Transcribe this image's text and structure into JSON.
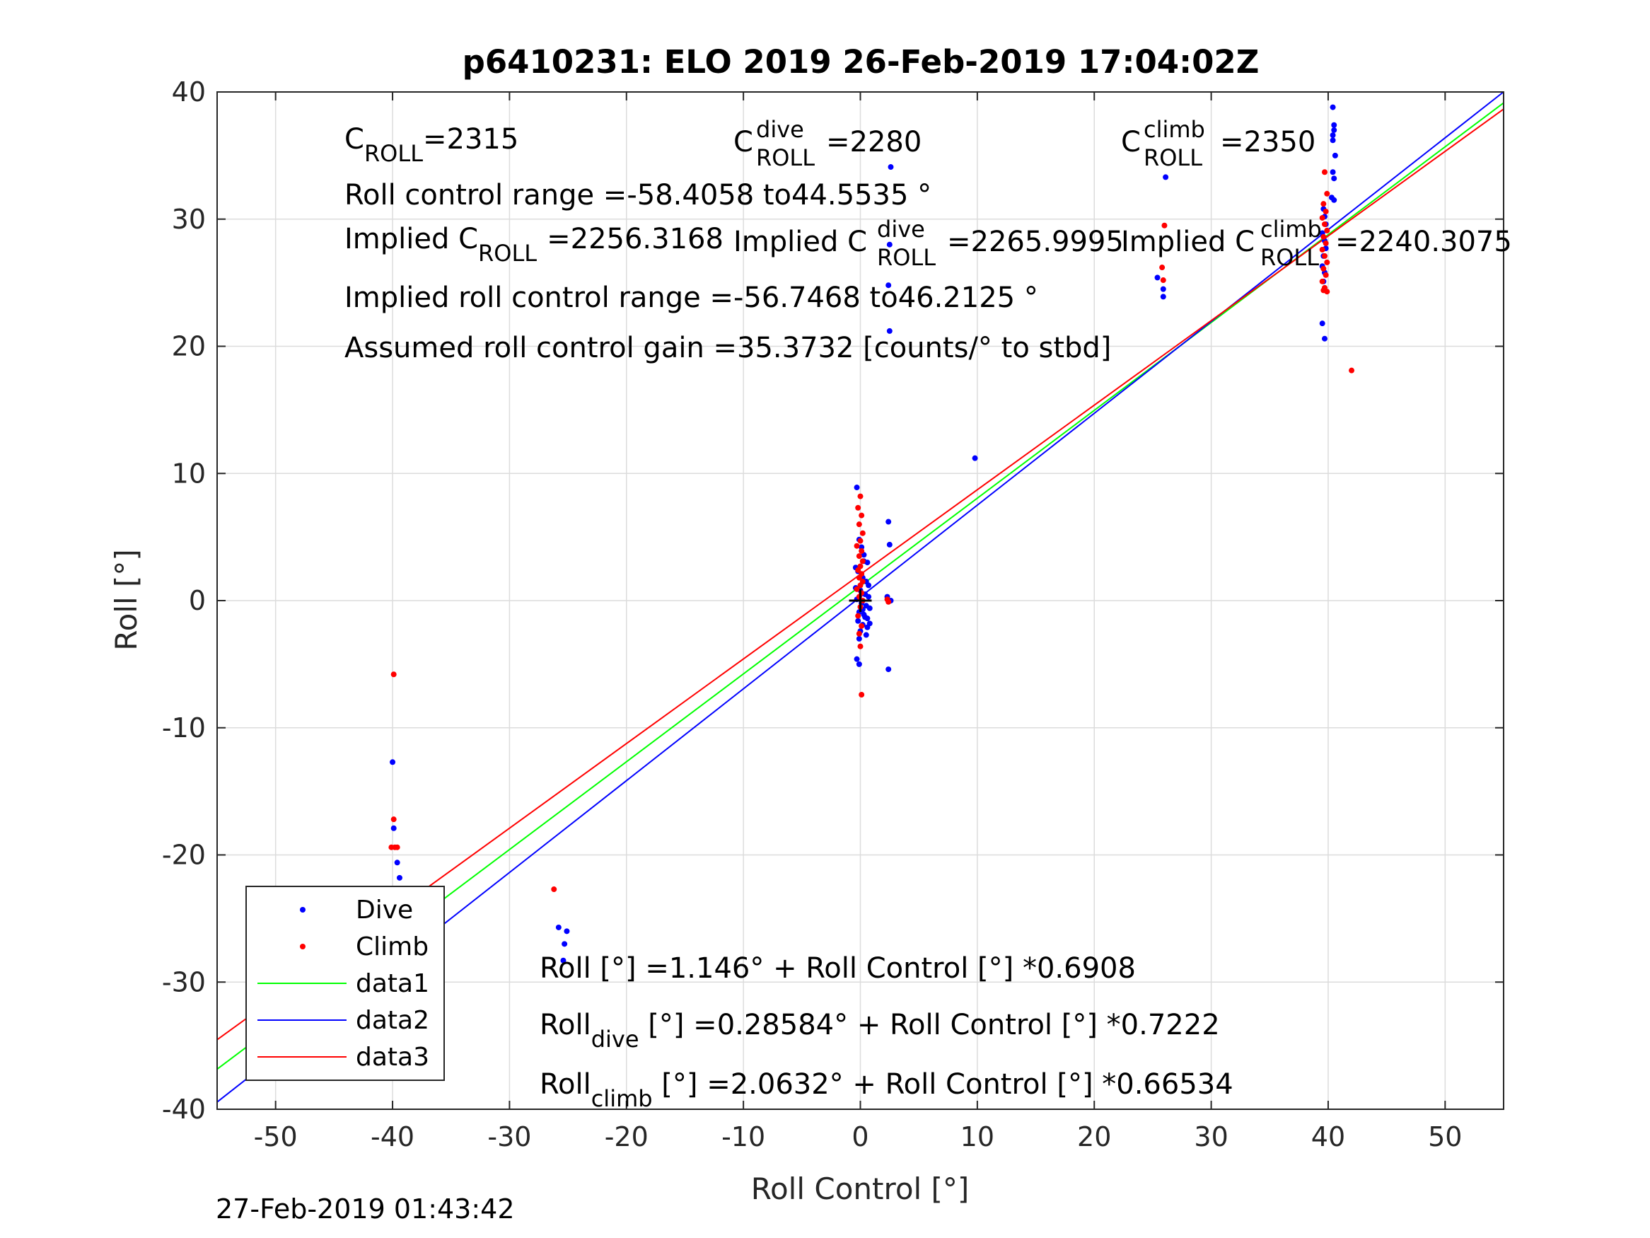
{
  "chart_data": {
    "type": "scatter",
    "title": "p6410231: ELO 2019 26-Feb-2019 17:04:02Z",
    "xlabel": "Roll Control [°]",
    "ylabel": "Roll [°]",
    "xlim": [
      -55,
      55
    ],
    "ylim": [
      -40,
      40
    ],
    "xticks": [
      -50,
      -40,
      -30,
      -20,
      -10,
      0,
      10,
      20,
      30,
      40,
      50
    ],
    "yticks": [
      -40,
      -30,
      -20,
      -10,
      0,
      10,
      20,
      30,
      40
    ],
    "xtick_labels": [
      "-50",
      "-40",
      "-30",
      "-20",
      "-10",
      "0",
      "10",
      "20",
      "30",
      "40",
      "50"
    ],
    "ytick_labels": [
      "-40",
      "-30",
      "-20",
      "-10",
      "0",
      "10",
      "20",
      "30",
      "40"
    ],
    "grid": true,
    "legend_position": "bottom-left",
    "colors": {
      "dive": "#0000ff",
      "climb": "#ff0000",
      "data1": "#00ff00",
      "data2": "#0000ff",
      "data3": "#ff0000",
      "grid": "#dcdcdc"
    },
    "series": [
      {
        "name": "Dive",
        "kind": "scatter",
        "color": "#0000ff",
        "points": [
          [
            -40.0,
            -12.7
          ],
          [
            -39.9,
            -17.9
          ],
          [
            -39.6,
            -20.6
          ],
          [
            -39.4,
            -21.8
          ],
          [
            -39.7,
            -25.5
          ],
          [
            -39.5,
            -25.7
          ],
          [
            -39.6,
            -26.0
          ],
          [
            -39.8,
            -26.4
          ],
          [
            -39.5,
            -27.0
          ],
          [
            -39.7,
            -27.3
          ],
          [
            -39.4,
            -27.7
          ],
          [
            -39.6,
            -28.1
          ],
          [
            -39.8,
            -28.4
          ],
          [
            -39.5,
            -28.7
          ],
          [
            -40.0,
            -28.9
          ],
          [
            -39.7,
            -29.2
          ],
          [
            -25.8,
            -25.7
          ],
          [
            -25.1,
            -26.0
          ],
          [
            -25.3,
            -27.0
          ],
          [
            -25.4,
            -28.3
          ],
          [
            -0.3,
            8.9
          ],
          [
            -0.1,
            4.8
          ],
          [
            0.1,
            4.2
          ],
          [
            0.3,
            3.1
          ],
          [
            0.6,
            3.0
          ],
          [
            -0.2,
            2.3
          ],
          [
            0.2,
            1.8
          ],
          [
            0.5,
            1.5
          ],
          [
            -0.4,
            1.0
          ],
          [
            0.0,
            0.8
          ],
          [
            0.4,
            0.5
          ],
          [
            0.7,
            0.3
          ],
          [
            -0.3,
            0.1
          ],
          [
            0.1,
            -0.2
          ],
          [
            0.5,
            -0.4
          ],
          [
            0.8,
            -0.6
          ],
          [
            -0.1,
            -0.9
          ],
          [
            0.3,
            -1.1
          ],
          [
            0.6,
            -1.4
          ],
          [
            -0.2,
            -1.6
          ],
          [
            0.2,
            -1.9
          ],
          [
            0.6,
            -2.1
          ],
          [
            0.0,
            -2.4
          ],
          [
            0.5,
            -2.7
          ],
          [
            -0.1,
            -3.0
          ],
          [
            -0.3,
            -4.6
          ],
          [
            -0.1,
            -5.0
          ],
          [
            0.4,
            -1.3
          ],
          [
            0.8,
            -1.8
          ],
          [
            0.2,
            -0.7
          ],
          [
            0.7,
            1.2
          ],
          [
            -0.4,
            2.6
          ],
          [
            0.3,
            3.6
          ],
          [
            2.4,
            6.2
          ],
          [
            2.5,
            4.4
          ],
          [
            2.3,
            0.3
          ],
          [
            2.6,
            0.0
          ],
          [
            2.4,
            -5.4
          ],
          [
            2.6,
            34.1
          ],
          [
            2.5,
            28.0
          ],
          [
            2.4,
            24.8
          ],
          [
            2.5,
            21.2
          ],
          [
            9.8,
            11.2
          ],
          [
            26.1,
            33.3
          ],
          [
            25.4,
            25.4
          ],
          [
            25.9,
            24.5
          ],
          [
            25.9,
            23.9
          ],
          [
            40.4,
            38.8
          ],
          [
            40.5,
            37.4
          ],
          [
            40.5,
            37.0
          ],
          [
            40.4,
            36.6
          ],
          [
            40.4,
            36.2
          ],
          [
            40.6,
            35.0
          ],
          [
            40.4,
            33.7
          ],
          [
            40.5,
            33.2
          ],
          [
            40.3,
            31.7
          ],
          [
            40.5,
            31.5
          ],
          [
            39.6,
            30.8
          ],
          [
            39.7,
            30.2
          ],
          [
            39.8,
            29.6
          ],
          [
            39.5,
            28.9
          ],
          [
            39.7,
            28.3
          ],
          [
            39.8,
            27.7
          ],
          [
            39.6,
            27.1
          ],
          [
            39.5,
            26.3
          ],
          [
            39.7,
            25.8
          ],
          [
            39.6,
            25.1
          ],
          [
            39.5,
            21.8
          ],
          [
            39.7,
            20.6
          ]
        ]
      },
      {
        "name": "Climb",
        "kind": "scatter",
        "color": "#ff0000",
        "points": [
          [
            -39.9,
            -5.8
          ],
          [
            -39.9,
            -17.2
          ],
          [
            -39.8,
            -19.4
          ],
          [
            -40.1,
            -19.4
          ],
          [
            -39.6,
            -19.4
          ],
          [
            -39.9,
            -22.8
          ],
          [
            -40.0,
            -23.6
          ],
          [
            -39.8,
            -24.1
          ],
          [
            -40.1,
            -24.5
          ],
          [
            -39.9,
            -24.9
          ],
          [
            -39.7,
            -25.2
          ],
          [
            -40.0,
            -25.5
          ],
          [
            -39.8,
            -25.8
          ],
          [
            -40.2,
            -26.1
          ],
          [
            -39.9,
            -26.4
          ],
          [
            -26.2,
            -22.7
          ],
          [
            0.0,
            8.2
          ],
          [
            -0.2,
            7.3
          ],
          [
            0.1,
            6.7
          ],
          [
            -0.1,
            6.0
          ],
          [
            0.2,
            5.3
          ],
          [
            0.0,
            4.7
          ],
          [
            -0.3,
            4.3
          ],
          [
            0.1,
            3.9
          ],
          [
            -0.1,
            3.5
          ],
          [
            0.2,
            3.1
          ],
          [
            0.0,
            2.7
          ],
          [
            -0.2,
            2.4
          ],
          [
            0.1,
            2.1
          ],
          [
            -0.1,
            1.8
          ],
          [
            0.2,
            1.5
          ],
          [
            0.0,
            1.2
          ],
          [
            -0.3,
            0.9
          ],
          [
            0.1,
            0.6
          ],
          [
            -0.1,
            0.3
          ],
          [
            0.2,
            0.0
          ],
          [
            0.0,
            -0.5
          ],
          [
            -0.2,
            -1.2
          ],
          [
            0.1,
            -2.0
          ],
          [
            -0.1,
            -2.6
          ],
          [
            0.0,
            -3.6
          ],
          [
            0.1,
            -7.4
          ],
          [
            2.3,
            0.1
          ],
          [
            2.4,
            -0.1
          ],
          [
            26.0,
            29.5
          ],
          [
            25.8,
            26.2
          ],
          [
            25.9,
            25.2
          ],
          [
            39.7,
            33.7
          ],
          [
            39.9,
            32.0
          ],
          [
            39.6,
            31.2
          ],
          [
            39.8,
            30.6
          ],
          [
            39.5,
            30.1
          ],
          [
            39.7,
            29.6
          ],
          [
            39.9,
            29.1
          ],
          [
            39.6,
            28.6
          ],
          [
            39.8,
            28.1
          ],
          [
            39.5,
            27.6
          ],
          [
            39.7,
            27.1
          ],
          [
            39.9,
            26.6
          ],
          [
            39.6,
            26.1
          ],
          [
            39.8,
            25.6
          ],
          [
            39.5,
            25.1
          ],
          [
            39.7,
            24.6
          ],
          [
            39.9,
            24.3
          ],
          [
            39.6,
            24.4
          ],
          [
            42.0,
            18.1
          ]
        ]
      },
      {
        "name": "data1",
        "kind": "line",
        "color": "#00ff00",
        "intercept": 1.146,
        "slope": 0.6908
      },
      {
        "name": "data2",
        "kind": "line",
        "color": "#0000ff",
        "intercept": 0.28584,
        "slope": 0.7222
      },
      {
        "name": "data3",
        "kind": "line",
        "color": "#ff0000",
        "intercept": 2.0632,
        "slope": 0.66534
      }
    ],
    "cross_marker": {
      "x": 0,
      "y": 0,
      "color": "#000000"
    },
    "annotations": {
      "c_roll": {
        "base": "C",
        "sub": "ROLL",
        "value": "=2315"
      },
      "c_roll_dive": {
        "base": "C",
        "sup": "dive",
        "sub": "ROLL",
        "value": "=2280"
      },
      "c_roll_climb": {
        "base": "C",
        "sup": "climb",
        "sub": "ROLL",
        "value": "=2350"
      },
      "roll_control_range": "Roll control range =-58.4058 to44.5535 °",
      "implied_c_roll": {
        "prefix": "Implied C",
        "sub": "ROLL",
        "value": "=2256.3168"
      },
      "implied_c_roll_dive": {
        "prefix": "Implied C",
        "sup": "dive",
        "sub": "ROLL",
        "value": "=2265.9995"
      },
      "implied_c_roll_climb": {
        "prefix": "Implied C",
        "sup": "climb",
        "sub": "ROLL",
        "value": "=2240.3075"
      },
      "implied_roll_control_range": "Implied roll control range =-56.7468 to46.2125 °",
      "assumed_gain": "Assumed roll control gain =35.3732 [counts/° to stbd]",
      "fit_all": "Roll [°] =1.146° + Roll Control [°] *0.6908",
      "fit_dive": {
        "prefix": "Roll",
        "sub": "dive",
        "rest": " [°] =0.28584° + Roll Control [°] *0.7222"
      },
      "fit_climb": {
        "prefix": "Roll",
        "sub": "climb",
        "rest": " [°] =2.0632° + Roll Control [°] *0.66534"
      }
    },
    "legend": [
      "Dive",
      "Climb",
      "data1",
      "data2",
      "data3"
    ],
    "footer_timestamp": "27-Feb-2019 01:43:42"
  }
}
